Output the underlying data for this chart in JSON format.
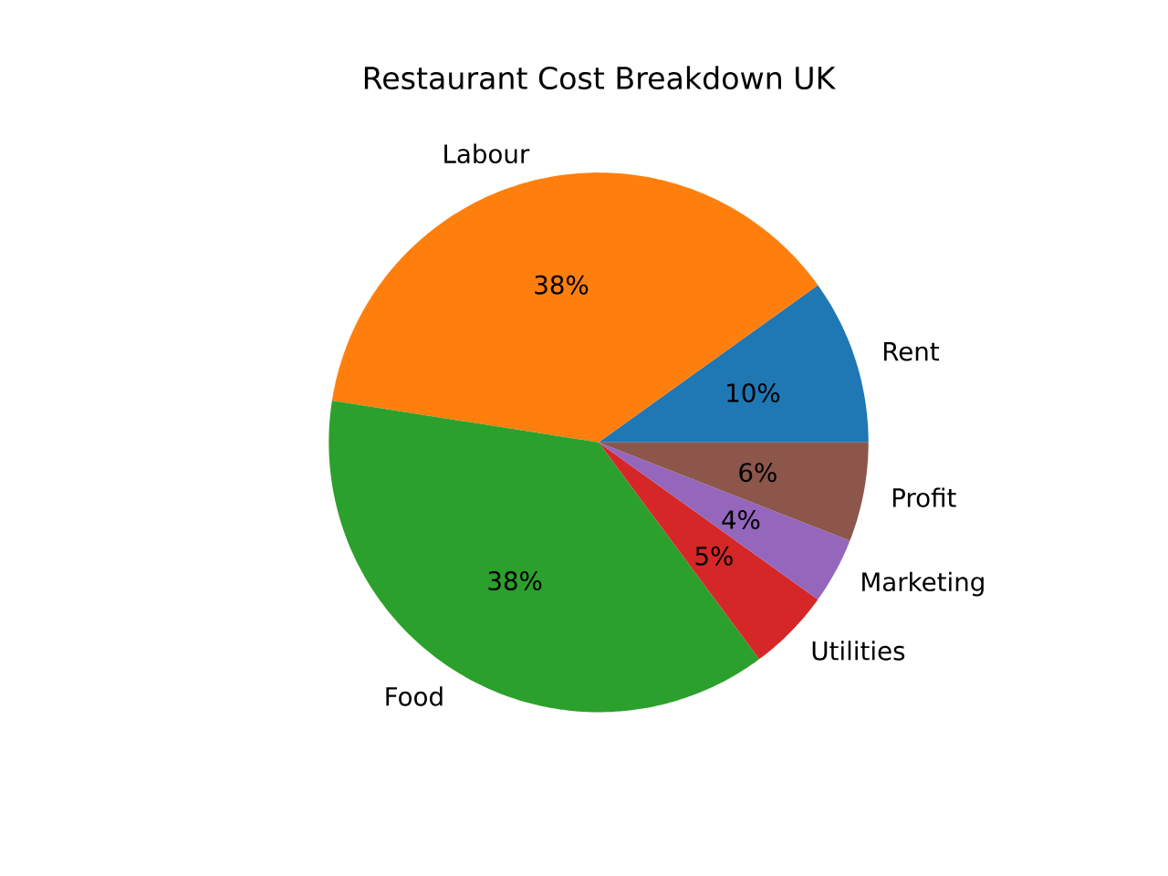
{
  "chart_data": {
    "type": "pie",
    "title": "Restaurant Cost Breakdown UK",
    "categories": [
      "Rent",
      "Labour",
      "Food",
      "Utilities",
      "Marketing",
      "Profit"
    ],
    "values": [
      10,
      38,
      38,
      5,
      4,
      6
    ],
    "value_labels": [
      "10%",
      "38%",
      "38%",
      "5%",
      "4%",
      "6%"
    ],
    "colors": [
      "#1f77b4",
      "#ff7f0e",
      "#2ca02c",
      "#d62728",
      "#9467bd",
      "#8c564b"
    ]
  }
}
